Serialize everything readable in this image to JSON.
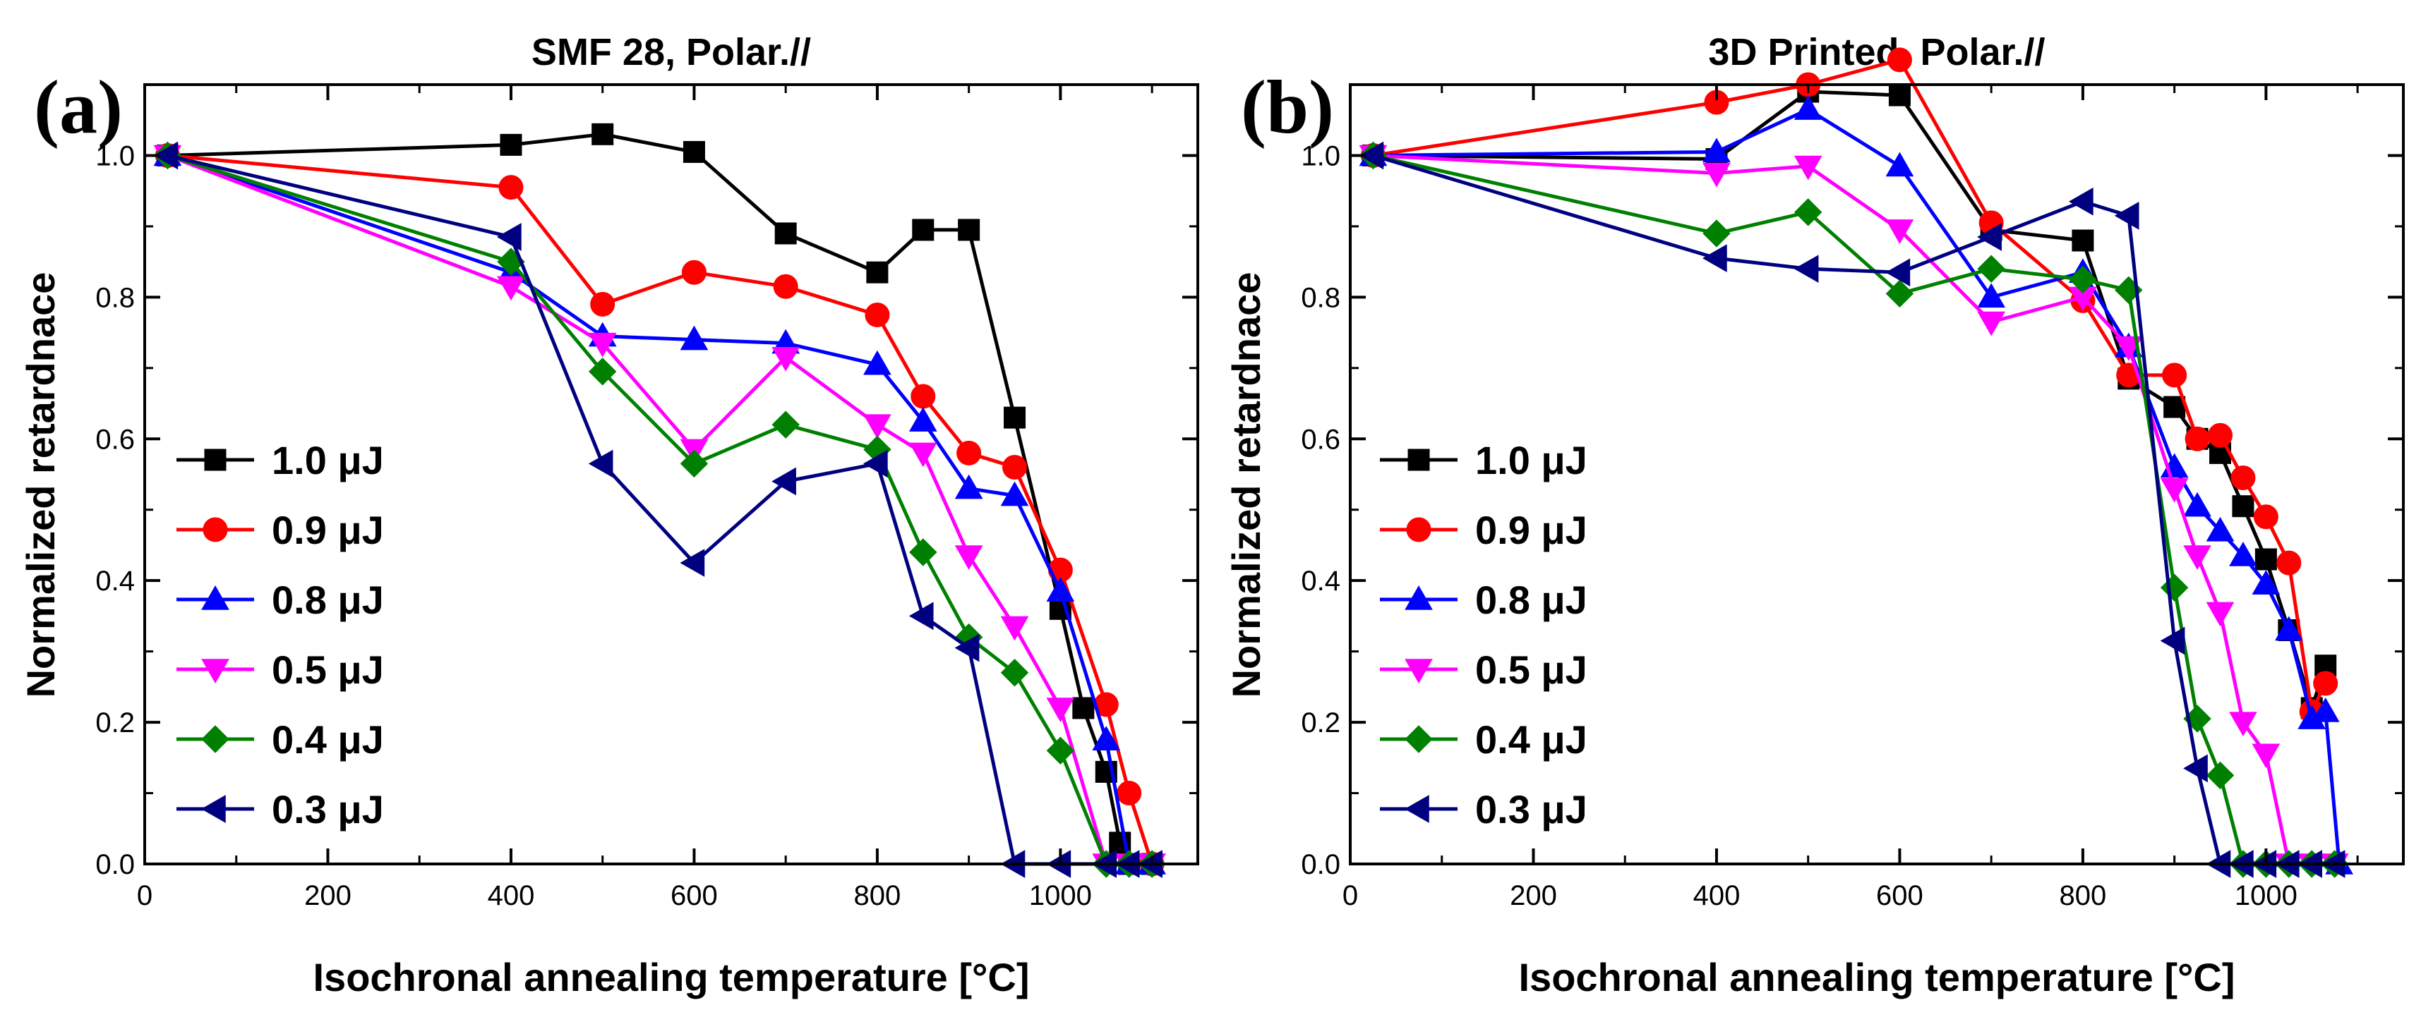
{
  "chart_data": [
    {
      "type": "line",
      "panel_label": "(a)",
      "title": "SMF 28, Polar.//",
      "xlabel": "Isochronal annealing temperature [°C]",
      "ylabel": "Normalized retardnace",
      "xlim": [
        0,
        1150
      ],
      "ylim": [
        0,
        1.1
      ],
      "xticks": [
        0,
        200,
        400,
        600,
        800,
        1000
      ],
      "xtick_labels": [
        "0",
        "200",
        "400",
        "600",
        "800",
        "1000"
      ],
      "yticks": [
        0.0,
        0.2,
        0.4,
        0.6,
        0.8,
        1.0
      ],
      "ytick_labels": [
        "0.0",
        "0.2",
        "0.4",
        "0.6",
        "0.8",
        "1.0"
      ],
      "grid": false,
      "legend_position": "lower-left",
      "series": [
        {
          "name": "1.0 μJ",
          "color": "#000000",
          "marker": "square",
          "x": [
            25,
            400,
            500,
            600,
            700,
            800,
            850,
            900,
            950,
            1000,
            1025,
            1050,
            1065,
            1075,
            1100
          ],
          "y": [
            1.0,
            1.015,
            1.03,
            1.005,
            0.89,
            0.835,
            0.895,
            0.895,
            0.63,
            0.36,
            0.22,
            0.13,
            0.03,
            0.0,
            0.0
          ]
        },
        {
          "name": "0.9 μJ",
          "color": "#ff0000",
          "marker": "circle",
          "x": [
            25,
            400,
            500,
            600,
            700,
            800,
            850,
            900,
            950,
            1000,
            1050,
            1075,
            1100
          ],
          "y": [
            1.0,
            0.955,
            0.79,
            0.835,
            0.815,
            0.775,
            0.66,
            0.58,
            0.56,
            0.415,
            0.225,
            0.1,
            0.0
          ]
        },
        {
          "name": "0.8 μJ",
          "color": "#0000ff",
          "marker": "triangle-up",
          "x": [
            25,
            400,
            500,
            600,
            700,
            800,
            850,
            900,
            950,
            1000,
            1050,
            1075,
            1100
          ],
          "y": [
            1.0,
            0.835,
            0.745,
            0.74,
            0.735,
            0.705,
            0.625,
            0.53,
            0.52,
            0.385,
            0.175,
            0.0,
            0.0
          ]
        },
        {
          "name": "0.5 μJ",
          "color": "#ff00ff",
          "marker": "triangle-down",
          "x": [
            25,
            400,
            500,
            600,
            700,
            800,
            850,
            900,
            950,
            1000,
            1050,
            1075,
            1100
          ],
          "y": [
            1.0,
            0.815,
            0.735,
            0.585,
            0.715,
            0.62,
            0.58,
            0.435,
            0.335,
            0.22,
            0.0,
            0.0,
            0.0
          ]
        },
        {
          "name": "0.4 μJ",
          "color": "#008000",
          "marker": "diamond",
          "x": [
            25,
            400,
            500,
            600,
            700,
            800,
            850,
            900,
            950,
            1000,
            1050,
            1075,
            1100
          ],
          "y": [
            1.0,
            0.85,
            0.695,
            0.565,
            0.62,
            0.585,
            0.44,
            0.32,
            0.27,
            0.16,
            0.0,
            0.0,
            0.0
          ]
        },
        {
          "name": "0.3 μJ",
          "color": "#000080",
          "marker": "triangle-left",
          "x": [
            25,
            400,
            500,
            600,
            700,
            800,
            850,
            900,
            950,
            1000,
            1050,
            1075,
            1100
          ],
          "y": [
            1.0,
            0.885,
            0.565,
            0.425,
            0.54,
            0.565,
            0.35,
            0.305,
            0.0,
            0.0,
            0.0,
            0.0,
            0.0
          ]
        }
      ]
    },
    {
      "type": "line",
      "panel_label": "(b)",
      "title": "3D Printed, Polar.//",
      "xlabel": "Isochronal annealing temperature [°C]",
      "ylabel": "Normalized retardnace",
      "xlim": [
        0,
        1150
      ],
      "ylim": [
        0,
        1.1
      ],
      "xticks": [
        0,
        200,
        400,
        600,
        800,
        1000
      ],
      "xtick_labels": [
        "0",
        "200",
        "400",
        "600",
        "800",
        "1000"
      ],
      "yticks": [
        0.0,
        0.2,
        0.4,
        0.6,
        0.8,
        1.0
      ],
      "ytick_labels": [
        "0.0",
        "0.2",
        "0.4",
        "0.6",
        "0.8",
        "1.0"
      ],
      "grid": false,
      "legend_position": "lower-left",
      "series": [
        {
          "name": "1.0 μJ",
          "color": "#000000",
          "marker": "square",
          "x": [
            25,
            400,
            500,
            600,
            700,
            800,
            850,
            900,
            925,
            950,
            975,
            1000,
            1025,
            1050,
            1065
          ],
          "y": [
            1.0,
            0.995,
            1.09,
            1.085,
            0.895,
            0.88,
            0.685,
            0.645,
            0.6,
            0.58,
            0.505,
            0.43,
            0.33,
            0.22,
            0.28
          ]
        },
        {
          "name": "0.9 μJ",
          "color": "#ff0000",
          "marker": "circle",
          "x": [
            25,
            400,
            500,
            600,
            700,
            800,
            850,
            900,
            925,
            950,
            975,
            1000,
            1025,
            1050,
            1065
          ],
          "y": [
            1.0,
            1.075,
            1.1,
            1.135,
            0.905,
            0.795,
            0.69,
            0.69,
            0.6,
            0.605,
            0.545,
            0.49,
            0.425,
            0.215,
            0.255
          ]
        },
        {
          "name": "0.8 μJ",
          "color": "#0000ff",
          "marker": "triangle-up",
          "x": [
            25,
            400,
            500,
            600,
            700,
            800,
            850,
            900,
            925,
            950,
            975,
            1000,
            1025,
            1050,
            1065,
            1080
          ],
          "y": [
            1.0,
            1.005,
            1.065,
            0.985,
            0.8,
            0.835,
            0.73,
            0.56,
            0.505,
            0.47,
            0.435,
            0.395,
            0.33,
            0.205,
            0.215,
            0.0
          ]
        },
        {
          "name": "0.5 μJ",
          "color": "#ff00ff",
          "marker": "triangle-down",
          "x": [
            25,
            400,
            500,
            600,
            700,
            800,
            850,
            900,
            925,
            950,
            975,
            1000,
            1025,
            1050,
            1075
          ],
          "y": [
            1.0,
            0.975,
            0.985,
            0.895,
            0.765,
            0.8,
            0.73,
            0.53,
            0.435,
            0.355,
            0.2,
            0.155,
            0.0,
            0.0,
            0.0
          ]
        },
        {
          "name": "0.4 μJ",
          "color": "#008000",
          "marker": "diamond",
          "x": [
            25,
            400,
            500,
            600,
            700,
            800,
            850,
            900,
            925,
            950,
            975,
            1000,
            1025,
            1050,
            1075
          ],
          "y": [
            1.0,
            0.89,
            0.92,
            0.805,
            0.84,
            0.825,
            0.81,
            0.39,
            0.205,
            0.125,
            0.0,
            0.0,
            0.0,
            0.0,
            0.0
          ]
        },
        {
          "name": "0.3 μJ",
          "color": "#000080",
          "marker": "triangle-left",
          "x": [
            25,
            400,
            500,
            600,
            700,
            800,
            850,
            900,
            925,
            950,
            975,
            1000,
            1025,
            1050,
            1075
          ],
          "y": [
            1.0,
            0.855,
            0.84,
            0.835,
            0.885,
            0.935,
            0.915,
            0.315,
            0.135,
            0.0,
            0.0,
            0.0,
            0.0,
            0.0,
            0.0
          ]
        }
      ]
    }
  ]
}
